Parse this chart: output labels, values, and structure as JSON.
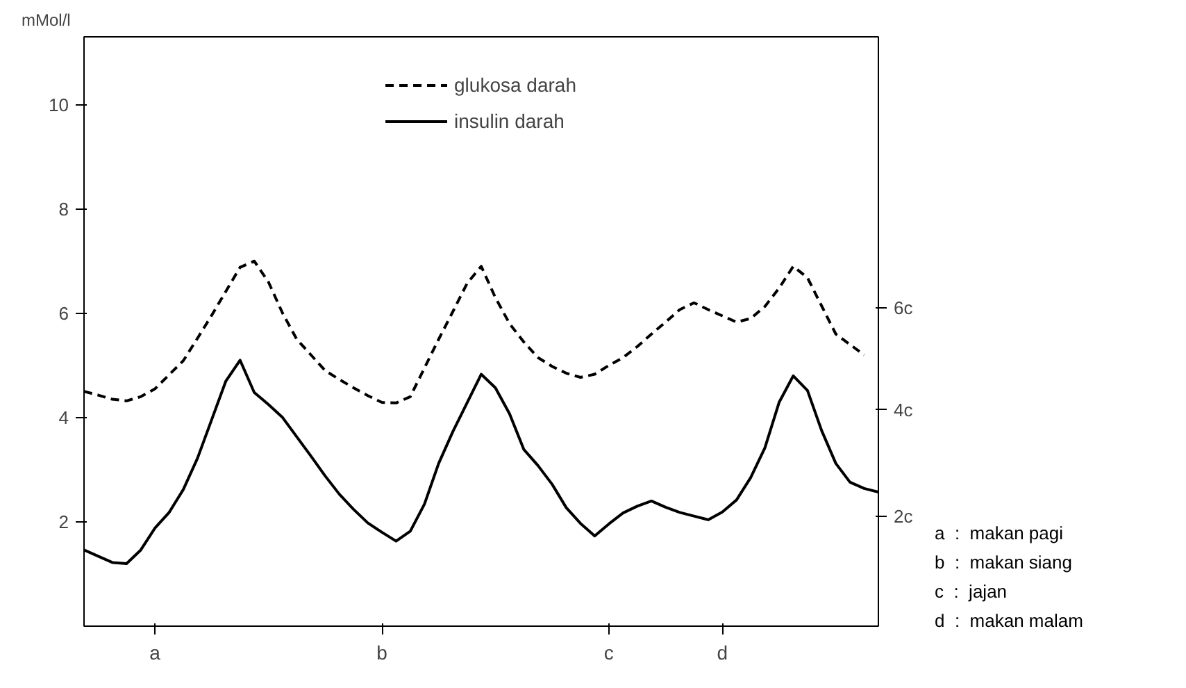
{
  "chart_data": {
    "type": "line",
    "ylabel": "mMol/l",
    "categories": [
      null,
      null,
      null,
      null,
      null,
      "a",
      null,
      null,
      null,
      null,
      null,
      null,
      null,
      null,
      null,
      null,
      null,
      null,
      null,
      null,
      null,
      "b",
      null,
      null,
      null,
      null,
      null,
      null,
      null,
      null,
      null,
      null,
      null,
      null,
      null,
      null,
      null,
      "c",
      null,
      null,
      null,
      null,
      null,
      null,
      null,
      "d",
      null,
      null,
      null,
      null,
      null,
      null,
      null,
      null,
      null,
      null,
      null
    ],
    "ylim": [
      0,
      11.3
    ],
    "yticks": [
      2,
      4,
      6,
      8,
      10
    ],
    "y2lim": [
      0,
      11.3
    ],
    "y2ticks": [
      {
        "value": 2.1,
        "label": "2c"
      },
      {
        "value": 4.15,
        "label": "4c"
      },
      {
        "value": 6.1,
        "label": "6c"
      }
    ],
    "series": [
      {
        "name": "glukosa darah",
        "color": "#000000",
        "line_style": "dashed",
        "values": [
          4.5,
          4.43,
          4.35,
          4.32,
          4.4,
          4.55,
          4.82,
          5.09,
          5.52,
          5.96,
          6.42,
          6.88,
          7.0,
          6.6,
          6.0,
          5.5,
          5.2,
          4.9,
          4.73,
          4.57,
          4.42,
          4.29,
          4.28,
          4.4,
          4.95,
          5.5,
          6.03,
          6.57,
          6.9,
          6.3,
          5.8,
          5.45,
          5.15,
          4.98,
          4.85,
          4.77,
          4.83,
          5.0,
          5.15,
          5.36,
          5.6,
          5.83,
          6.07,
          6.2,
          6.07,
          5.95,
          5.83,
          5.9,
          6.13,
          6.48,
          6.9,
          6.68,
          6.14,
          5.6,
          5.4,
          5.2,
          null
        ]
      },
      {
        "name": "insulin darah",
        "color": "#000000",
        "line_style": "solid",
        "values": [
          1.46,
          1.34,
          1.22,
          1.2,
          1.46,
          1.88,
          2.18,
          2.62,
          3.22,
          3.96,
          4.7,
          5.1,
          4.48,
          4.25,
          4.0,
          3.63,
          3.26,
          2.88,
          2.53,
          2.24,
          1.98,
          1.8,
          1.63,
          1.82,
          2.34,
          3.12,
          3.73,
          4.28,
          4.83,
          4.57,
          4.07,
          3.39,
          3.08,
          2.72,
          2.27,
          1.97,
          1.73,
          1.96,
          2.17,
          2.3,
          2.4,
          2.28,
          2.18,
          2.11,
          2.04,
          2.19,
          2.42,
          2.85,
          3.42,
          4.29,
          4.8,
          4.52,
          3.75,
          3.12,
          2.76,
          2.64,
          2.57
        ]
      }
    ],
    "legend": "top",
    "grid": false,
    "annotations": [
      "a  :  makan pagi",
      "b  :  makan siang",
      "c  :  jajan",
      "d  :  makan malam"
    ]
  }
}
